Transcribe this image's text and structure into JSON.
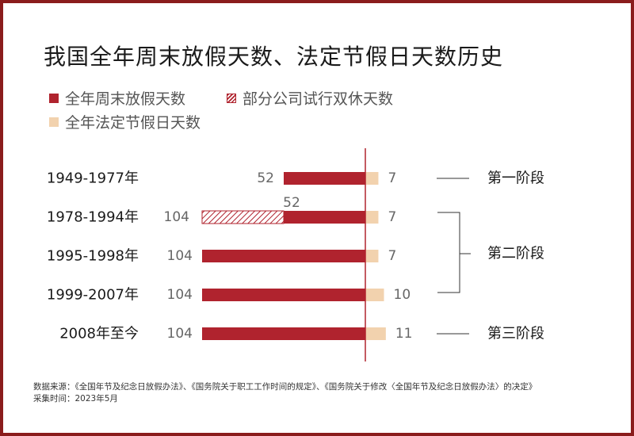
{
  "title": "我国全年周末放假天数、法定节假日天数历史",
  "legend": {
    "weekend": "全年周末放假天数",
    "partial": "部分公司试行双休天数",
    "holiday": "全年法定节假日天数"
  },
  "colors": {
    "weekend": "#b0232e",
    "partial_pattern": "#b0232e",
    "holiday": "#f2d2ae",
    "axis": "#b0232e",
    "frame": "#8a1c1c"
  },
  "chart_data": {
    "type": "bar",
    "orientation": "horizontal-diverging",
    "categories": [
      "1949-1977年",
      "1978-1994年",
      "1995-1998年",
      "1999-2007年",
      "2008年至今"
    ],
    "series": [
      {
        "name": "全年周末放假天数",
        "values": [
          52,
          52,
          104,
          104,
          104
        ],
        "direction": "left"
      },
      {
        "name": "部分公司试行双休天数",
        "values": [
          0,
          52,
          0,
          0,
          0
        ],
        "direction": "left",
        "pattern": "hatched"
      },
      {
        "name": "全年法定节假日天数",
        "values": [
          7,
          7,
          7,
          10,
          11
        ],
        "direction": "right"
      }
    ],
    "left_labels": [
      "52",
      "104",
      "104",
      "104",
      "104"
    ],
    "partial_label": "52",
    "right_labels": [
      "7",
      "7",
      "7",
      "10",
      "11"
    ],
    "stages": [
      {
        "label": "第一阶段",
        "rows": [
          0
        ]
      },
      {
        "label": "第二阶段",
        "rows": [
          1,
          2,
          3
        ]
      },
      {
        "label": "第三阶段",
        "rows": [
          4
        ]
      }
    ]
  },
  "footnote": {
    "line1": "数据来源：《全国年节及纪念日放假办法》、《国务院关于职工工作时间的规定》、《国务院关于修改〈全国年节及纪念日放假办法〉的决定》",
    "line2": "采集时间：2023年5月"
  }
}
